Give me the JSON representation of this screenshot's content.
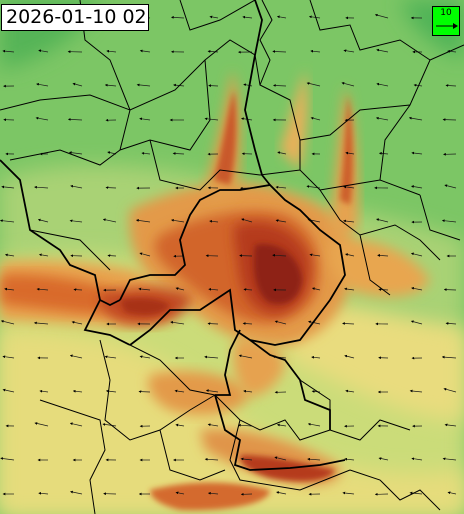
{
  "timestamp": "2026-01-10 02",
  "legend": {
    "speed_label": "10",
    "box_color": "#00ff00"
  },
  "palette": {
    "background_green": "#6dc260",
    "light_green": "#9fd072",
    "yellow_green": "#c9dc78",
    "yellow": "#ecde7e",
    "orange": "#e8a24e",
    "dark_orange": "#d96b2b",
    "red": "#b83a1c",
    "dark_red": "#8a1f13",
    "border_color": "#000000"
  },
  "wind_arrow_direction": "from-east"
}
